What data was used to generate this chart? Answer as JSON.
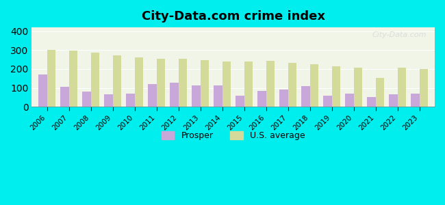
{
  "title": "City-Data.com crime index",
  "years": [
    2006,
    2007,
    2008,
    2009,
    2010,
    2011,
    2012,
    2013,
    2014,
    2015,
    2016,
    2017,
    2018,
    2019,
    2020,
    2021,
    2022,
    2023
  ],
  "prosper": [
    170,
    105,
    80,
    65,
    70,
    120,
    128,
    112,
    112,
    60,
    82,
    90,
    110,
    60,
    68,
    50,
    65,
    70
  ],
  "us_average": [
    300,
    298,
    288,
    272,
    260,
    255,
    253,
    245,
    238,
    238,
    242,
    233,
    225,
    213,
    208,
    153,
    208,
    198
  ],
  "prosper_color": "#c8a8d8",
  "us_avg_color": "#d4db9a",
  "background_color": "#00eeee",
  "plot_bg_color": "#f0f5e8",
  "ylim": [
    0,
    420
  ],
  "yticks": [
    0,
    100,
    200,
    300,
    400
  ],
  "watermark": "City-Data.com",
  "legend_prosper": "Prosper",
  "legend_us": "U.S. average"
}
